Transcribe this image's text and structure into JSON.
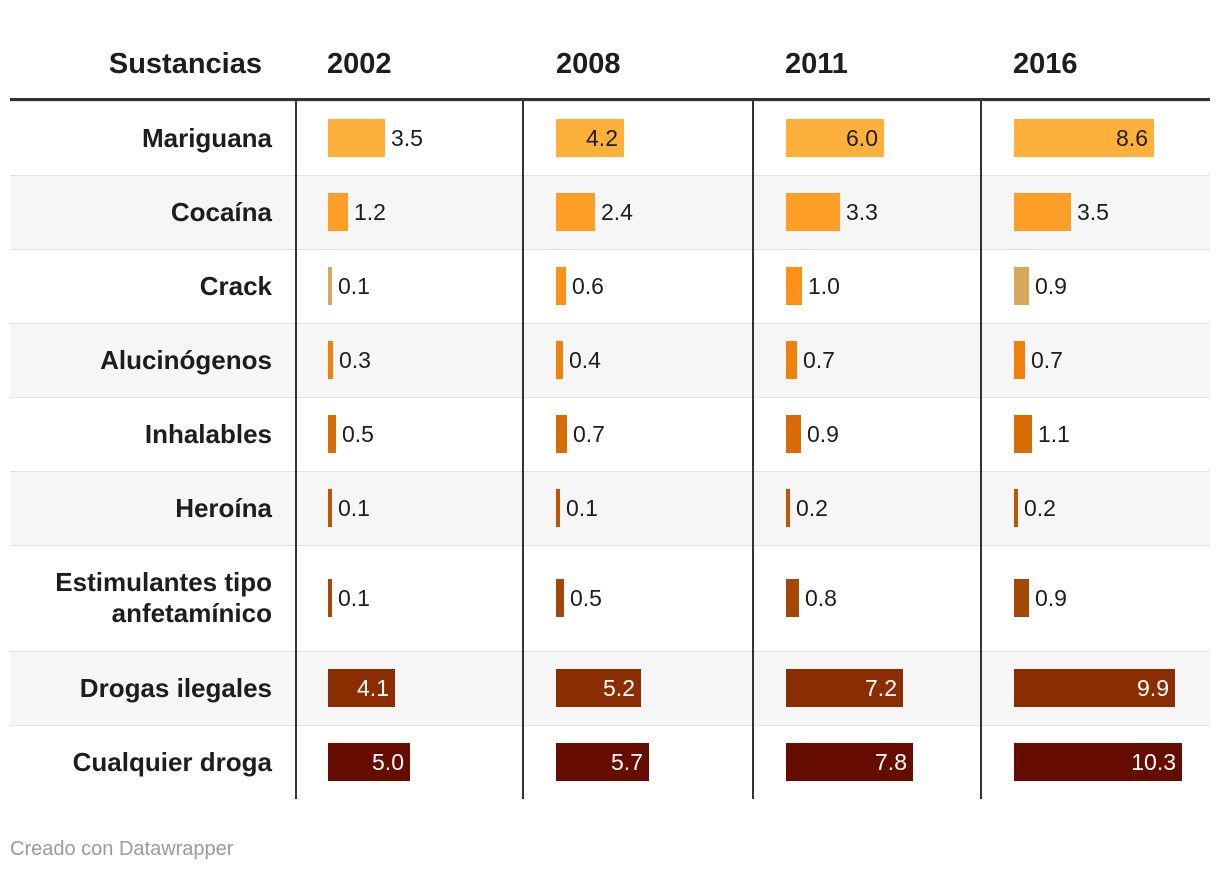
{
  "chart_data": {
    "type": "table",
    "header_label": "Sustancias",
    "years": [
      "2002",
      "2008",
      "2011",
      "2016"
    ],
    "rows": [
      {
        "label": "Mariguana",
        "values": [
          3.5,
          4.2,
          6.0,
          8.6
        ],
        "display": [
          "3.5",
          "4.2",
          "6.0",
          "8.6"
        ]
      },
      {
        "label": "Cocaína",
        "values": [
          1.2,
          2.4,
          3.3,
          3.5
        ],
        "display": [
          "1.2",
          "2.4",
          "3.3",
          "3.5"
        ]
      },
      {
        "label": "Crack",
        "values": [
          0.1,
          0.6,
          1.0,
          0.9
        ],
        "display": [
          "0.1",
          "0.6",
          "1.0",
          "0.9"
        ]
      },
      {
        "label": "Alucinógenos",
        "values": [
          0.3,
          0.4,
          0.7,
          0.7
        ],
        "display": [
          "0.3",
          "0.4",
          "0.7",
          "0.7"
        ]
      },
      {
        "label": "Inhalables",
        "values": [
          0.5,
          0.7,
          0.9,
          1.1
        ],
        "display": [
          "0.5",
          "0.7",
          "0.9",
          "1.1"
        ]
      },
      {
        "label": "Heroína",
        "values": [
          0.1,
          0.1,
          0.2,
          0.2
        ],
        "display": [
          "0.1",
          "0.1",
          "0.2",
          "0.2"
        ]
      },
      {
        "label": "Estimulantes tipo anfetamínico",
        "values": [
          0.1,
          0.5,
          0.8,
          0.9
        ],
        "display": [
          "0.1",
          "0.5",
          "0.8",
          "0.9"
        ]
      },
      {
        "label": "Drogas ilegales",
        "values": [
          4.1,
          5.2,
          7.2,
          9.9
        ],
        "display": [
          "4.1",
          "5.2",
          "7.2",
          "9.9"
        ]
      },
      {
        "label": "Cualquier droga",
        "values": [
          5.0,
          5.7,
          7.8,
          10.3
        ],
        "display": [
          "5.0",
          "5.7",
          "7.8",
          "10.3"
        ]
      }
    ],
    "bar_colors": [
      [
        "#fdb03a",
        "#fdb03a",
        "#fdb03a",
        "#fdb03a"
      ],
      [
        "#fd9f27",
        "#fd9f27",
        "#fd9f27",
        "#fd9f27"
      ],
      [
        "#d6a75c",
        "#fd9117",
        "#fd9117",
        "#d6a75c"
      ],
      [
        "#ee820d",
        "#ee820d",
        "#ee820d",
        "#ee820d"
      ],
      [
        "#d76b05",
        "#d76b05",
        "#d76b05",
        "#d76b05"
      ],
      [
        "#be5605",
        "#be5605",
        "#be5605",
        "#be5605"
      ],
      [
        "#a44807",
        "#a44807",
        "#a44807",
        "#a44807"
      ],
      [
        "#8a2e02",
        "#8a2e02",
        "#8a2e02",
        "#8a2e02"
      ],
      [
        "#660c00",
        "#660c00",
        "#660c00",
        "#660c00"
      ]
    ],
    "value_text_colors": {
      "on_light": "#1d1d1d",
      "on_dark": "#ffffff",
      "outside": "#1d1d1d"
    }
  },
  "footer": {
    "credit": "Creado con Datawrapper"
  }
}
